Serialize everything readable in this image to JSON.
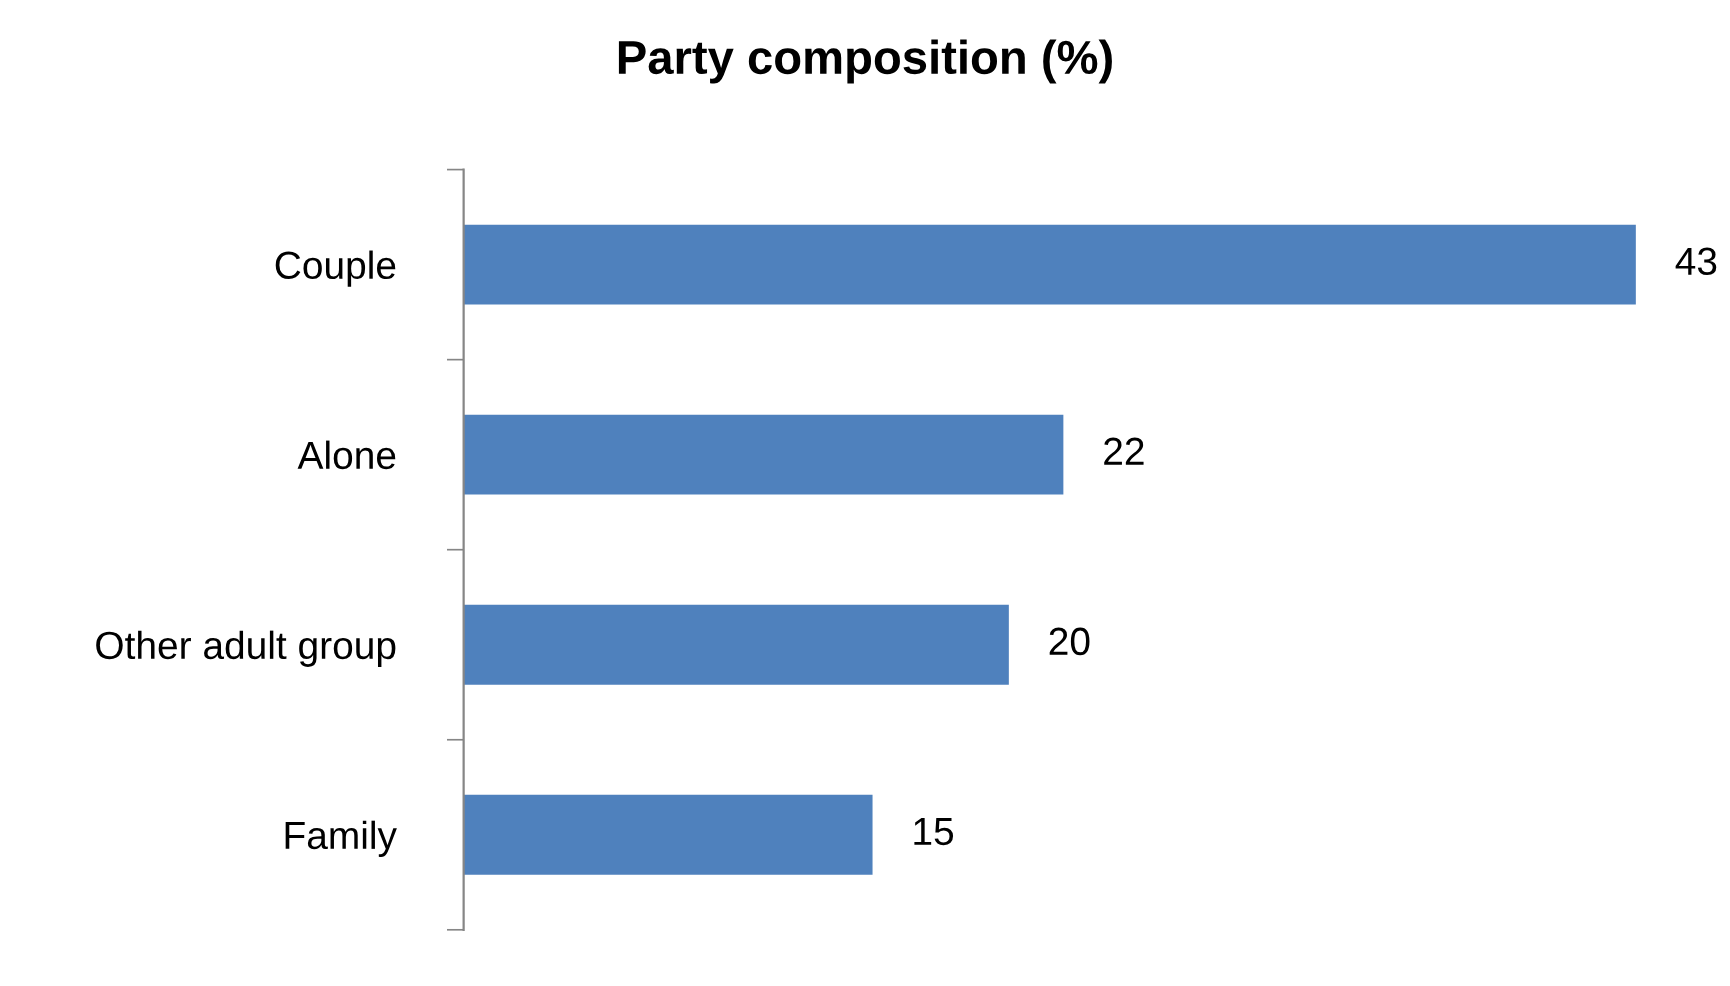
{
  "chart_data": {
    "type": "bar",
    "orientation": "horizontal",
    "title": "Party composition (%)",
    "categories": [
      "Couple",
      "Alone",
      "Other adult group",
      "Family"
    ],
    "values": [
      43,
      22,
      20,
      15
    ],
    "color": "#4f81bd",
    "data_labels": true,
    "grid": false,
    "legend": false,
    "tick_labels": "y"
  }
}
